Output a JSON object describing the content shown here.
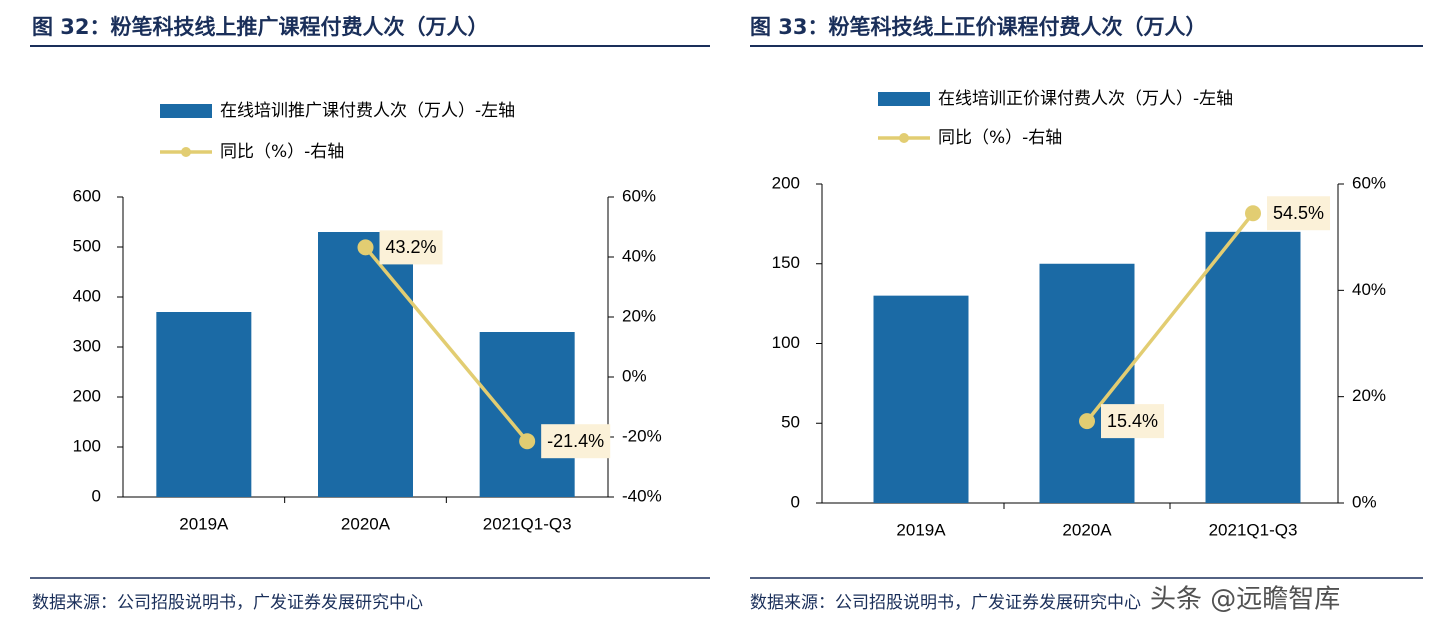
{
  "chart_data": [
    {
      "type": "bar",
      "title": "图 32：粉笔科技线上推广课程付费人次（万人）",
      "categories": [
        "2019A",
        "2020A",
        "2021Q1-Q3"
      ],
      "series": [
        {
          "name": "在线培训推广课付费人次（万人）-左轴",
          "type": "bar",
          "color": "#1b6aa5",
          "values": [
            370,
            530,
            330
          ]
        },
        {
          "name": "同比（%）-右轴",
          "type": "line",
          "axis": "y2",
          "color": "#e2cd72",
          "values": [
            null,
            43.2,
            -21.4
          ],
          "value_labels": [
            null,
            "43.2%",
            "-21.4%"
          ]
        }
      ],
      "ylim": [
        0,
        600
      ],
      "yticks": [
        0,
        100,
        200,
        300,
        400,
        500,
        600
      ],
      "y2lim": [
        -40,
        60
      ],
      "y2ticks": [
        {
          "value": -40,
          "label": "-40%"
        },
        {
          "value": -20,
          "label": "-20%"
        },
        {
          "value": 0,
          "label": "0%"
        },
        {
          "value": 20,
          "label": "20%"
        },
        {
          "value": 40,
          "label": "40%"
        },
        {
          "value": 60,
          "label": "60%"
        }
      ],
      "source": "数据来源：公司招股说明书，广发证券发展研究中心"
    },
    {
      "type": "bar",
      "title": "图 33：粉笔科技线上正价课程付费人次（万人）",
      "categories": [
        "2019A",
        "2020A",
        "2021Q1-Q3"
      ],
      "series": [
        {
          "name": "在线培训正价课付费人次（万人）-左轴",
          "type": "bar",
          "color": "#1b6aa5",
          "values": [
            130,
            150,
            170
          ]
        },
        {
          "name": "同比（%）-右轴",
          "type": "line",
          "axis": "y2",
          "color": "#e2cd72",
          "values": [
            null,
            15.4,
            54.5
          ],
          "value_labels": [
            null,
            "15.4%",
            "54.5%"
          ]
        }
      ],
      "ylim": [
        0,
        200
      ],
      "yticks": [
        0,
        50,
        100,
        150,
        200
      ],
      "y2lim": [
        0,
        60
      ],
      "y2ticks": [
        {
          "value": 0,
          "label": "0%"
        },
        {
          "value": 20,
          "label": "20%"
        },
        {
          "value": 40,
          "label": "40%"
        },
        {
          "value": 60,
          "label": "60%"
        }
      ],
      "source": "数据来源：公司招股说明书，广发证券发展研究中心"
    }
  ],
  "watermark": "头条 @远瞻智库"
}
